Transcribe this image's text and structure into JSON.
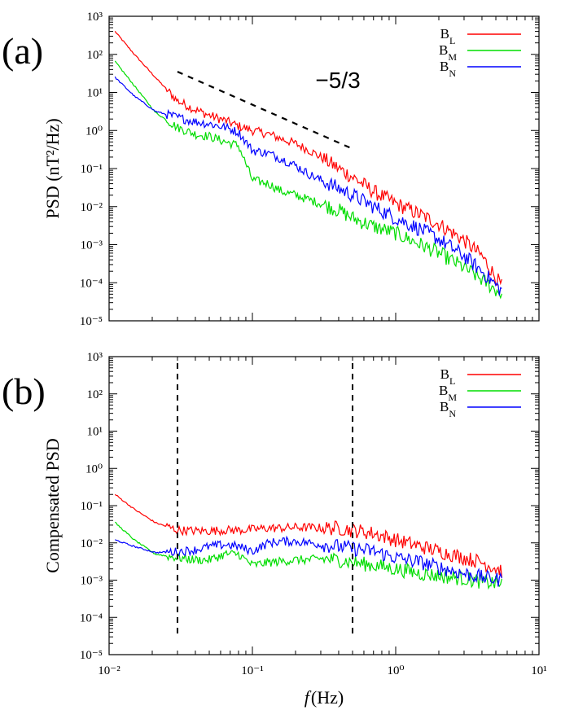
{
  "colors": {
    "B_L": "#ff0000",
    "B_M": "#00dd00",
    "B_N": "#0000ff",
    "axis": "#000000"
  },
  "chart_data": [
    {
      "id": "a",
      "type": "line",
      "panel_label": "(a)",
      "ylabel": "PSD (nT²/Hz)",
      "xlabel": "",
      "xscale": "log",
      "yscale": "log",
      "xlim": [
        0.01,
        10
      ],
      "ylim": [
        1e-05,
        1000
      ],
      "x_ticks": [
        "",
        "",
        "",
        ""
      ],
      "y_ticks": [
        "10⁻⁵",
        "10⁻⁴",
        "10⁻³",
        "10⁻²",
        "10⁻¹",
        "10⁰",
        "10¹",
        "10²",
        "10³"
      ],
      "legend": {
        "placement": "top-right",
        "entries": [
          "B_L",
          "B_M",
          "B_N"
        ],
        "labels": [
          [
            "B",
            "L"
          ],
          [
            "B",
            "M"
          ],
          [
            "B",
            "N"
          ]
        ]
      },
      "annotations": [
        {
          "type": "dashed-line",
          "x": [
            0.03,
            0.5
          ],
          "y": [
            35,
            0.33
          ],
          "label": "−5/3",
          "label_x": 0.25,
          "label_y": 35
        }
      ],
      "series": [
        {
          "key": "B_L",
          "x": [
            0.011,
            0.015,
            0.021,
            0.03,
            0.04,
            0.05,
            0.065,
            0.08,
            0.1,
            0.13,
            0.16,
            0.2,
            0.25,
            0.3,
            0.4,
            0.5,
            0.7,
            1,
            1.5,
            2,
            3,
            4,
            5.5
          ],
          "y": [
            400,
            100,
            25,
            6,
            3.5,
            2.5,
            1.8,
            1.3,
            1.0,
            0.8,
            0.6,
            0.45,
            0.3,
            0.2,
            0.1,
            0.06,
            0.025,
            0.012,
            0.006,
            0.0035,
            0.0013,
            0.0005,
            8e-05
          ]
        },
        {
          "key": "B_M",
          "x": [
            0.011,
            0.015,
            0.021,
            0.03,
            0.04,
            0.05,
            0.065,
            0.08,
            0.1,
            0.13,
            0.16,
            0.2,
            0.25,
            0.3,
            0.4,
            0.5,
            0.7,
            1,
            1.5,
            2,
            3,
            4,
            5.5
          ],
          "y": [
            65,
            15,
            3,
            1.2,
            0.8,
            0.7,
            0.5,
            0.4,
            0.05,
            0.04,
            0.025,
            0.02,
            0.015,
            0.012,
            0.008,
            0.005,
            0.003,
            0.002,
            0.001,
            0.0006,
            0.00025,
            0.00012,
            5e-05
          ]
        },
        {
          "key": "B_N",
          "x": [
            0.011,
            0.015,
            0.021,
            0.03,
            0.04,
            0.05,
            0.065,
            0.08,
            0.1,
            0.13,
            0.16,
            0.2,
            0.25,
            0.3,
            0.4,
            0.5,
            0.7,
            1,
            1.5,
            2,
            3,
            4,
            5.5
          ],
          "y": [
            25,
            8,
            3.2,
            2.2,
            1.7,
            1.5,
            1.2,
            0.9,
            0.3,
            0.25,
            0.18,
            0.12,
            0.07,
            0.05,
            0.03,
            0.02,
            0.01,
            0.005,
            0.0025,
            0.0014,
            0.0005,
            0.0002,
            6e-05
          ]
        }
      ]
    },
    {
      "id": "b",
      "type": "line",
      "panel_label": "(b)",
      "ylabel": "Compensated PSD",
      "xlabel": "(Hz)",
      "xlabel_italic": "f",
      "xscale": "log",
      "yscale": "log",
      "xlim": [
        0.01,
        10
      ],
      "ylim": [
        1e-05,
        1000
      ],
      "x_ticks": [
        "10⁻²",
        "10⁻¹",
        "10⁰",
        "10¹"
      ],
      "y_ticks": [
        "10⁻⁵",
        "10⁻⁴",
        "10⁻³",
        "10⁻²",
        "10⁻¹",
        "10⁰",
        "10¹",
        "10²",
        "10³"
      ],
      "legend": {
        "placement": "top-right",
        "entries": [
          "B_L",
          "B_M",
          "B_N"
        ],
        "labels": [
          [
            "B",
            "L"
          ],
          [
            "B",
            "M"
          ],
          [
            "B",
            "N"
          ]
        ]
      },
      "vlines": [
        0.03,
        0.5
      ],
      "series": [
        {
          "key": "B_L",
          "x": [
            0.011,
            0.015,
            0.021,
            0.03,
            0.04,
            0.05,
            0.065,
            0.08,
            0.1,
            0.13,
            0.16,
            0.2,
            0.25,
            0.3,
            0.4,
            0.5,
            0.7,
            1,
            1.5,
            2,
            3,
            4,
            5.5
          ],
          "y": [
            0.2,
            0.08,
            0.035,
            0.022,
            0.021,
            0.021,
            0.022,
            0.022,
            0.023,
            0.025,
            0.025,
            0.026,
            0.026,
            0.025,
            0.025,
            0.022,
            0.018,
            0.012,
            0.008,
            0.006,
            0.004,
            0.003,
            0.0018
          ]
        },
        {
          "key": "B_M",
          "x": [
            0.011,
            0.015,
            0.021,
            0.03,
            0.04,
            0.05,
            0.065,
            0.08,
            0.1,
            0.13,
            0.16,
            0.2,
            0.25,
            0.3,
            0.4,
            0.5,
            0.7,
            1,
            1.5,
            2,
            3,
            4,
            5.5
          ],
          "y": [
            0.035,
            0.012,
            0.005,
            0.004,
            0.0035,
            0.0035,
            0.005,
            0.005,
            0.0025,
            0.003,
            0.0032,
            0.0035,
            0.0035,
            0.0038,
            0.0035,
            0.003,
            0.0025,
            0.002,
            0.0015,
            0.0013,
            0.0011,
            0.0009,
            0.0008
          ]
        },
        {
          "key": "B_N",
          "x": [
            0.011,
            0.015,
            0.021,
            0.03,
            0.04,
            0.05,
            0.065,
            0.08,
            0.1,
            0.13,
            0.16,
            0.2,
            0.25,
            0.3,
            0.4,
            0.5,
            0.7,
            1,
            1.5,
            2,
            3,
            4,
            5.5
          ],
          "y": [
            0.012,
            0.008,
            0.0055,
            0.0058,
            0.0065,
            0.008,
            0.009,
            0.008,
            0.006,
            0.01,
            0.011,
            0.011,
            0.01,
            0.009,
            0.008,
            0.007,
            0.006,
            0.004,
            0.003,
            0.0022,
            0.0015,
            0.0012,
            0.001
          ]
        }
      ]
    }
  ]
}
